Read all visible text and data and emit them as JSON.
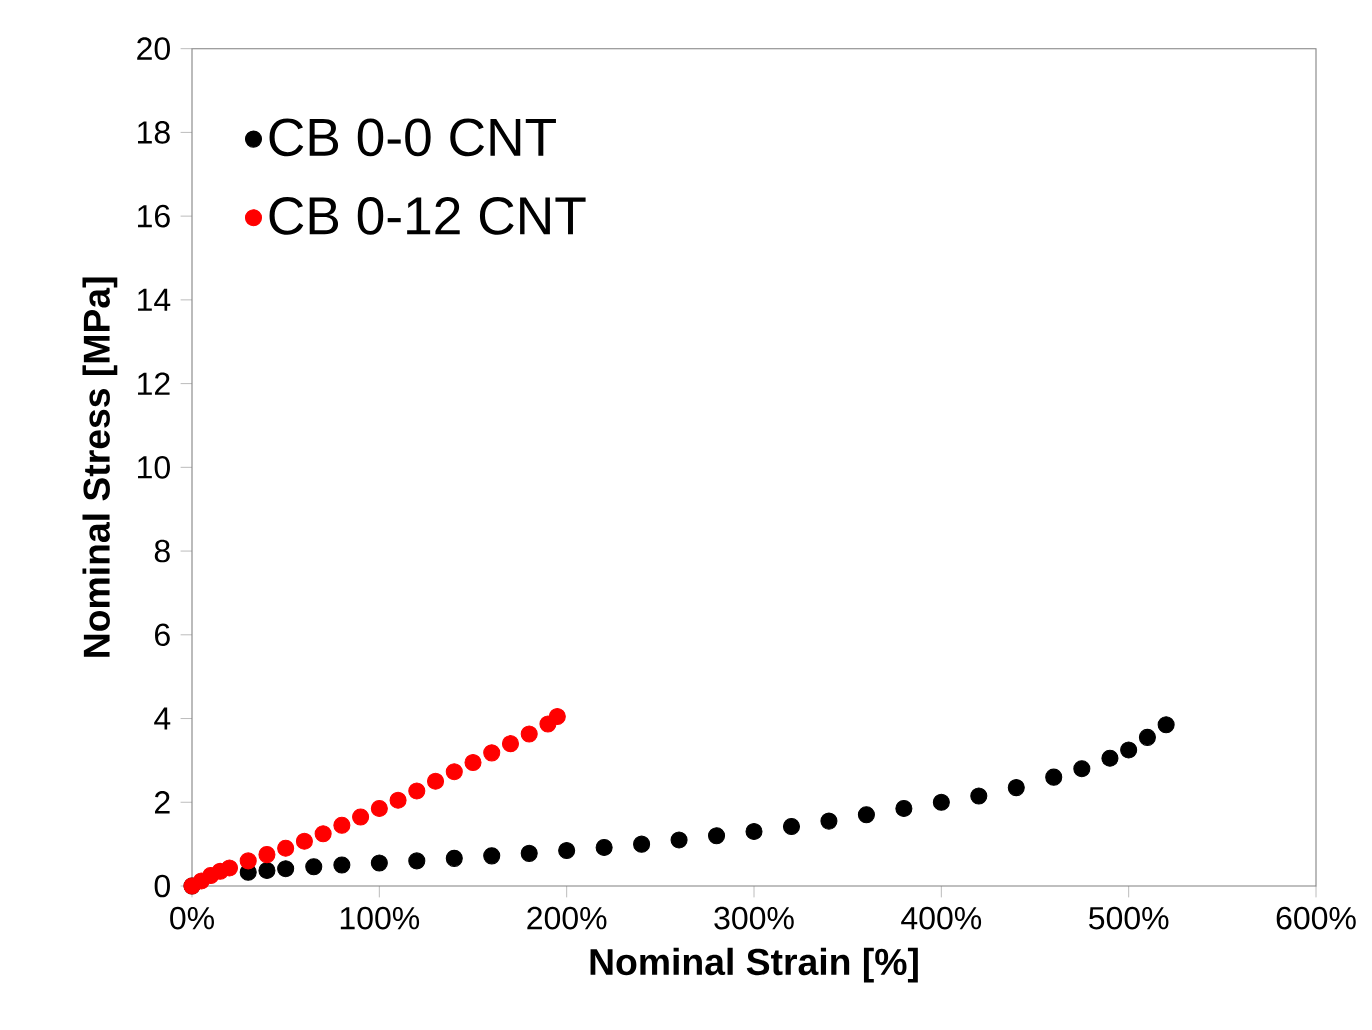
{
  "chart_data": {
    "type": "scatter",
    "xlabel": "Nominal Strain [%]",
    "ylabel": "Nominal Stress [MPa]",
    "xlim": [
      0,
      600
    ],
    "ylim": [
      0,
      20
    ],
    "xticks": [
      {
        "value": 0,
        "label": "0%"
      },
      {
        "value": 100,
        "label": "100%"
      },
      {
        "value": 200,
        "label": "200%"
      },
      {
        "value": 300,
        "label": "300%"
      },
      {
        "value": 400,
        "label": "400%"
      },
      {
        "value": 500,
        "label": "500%"
      },
      {
        "value": 600,
        "label": "600%"
      }
    ],
    "yticks": [
      0,
      2,
      4,
      6,
      8,
      10,
      12,
      14,
      16,
      18,
      20
    ],
    "marker": "circle",
    "legend": "top left",
    "grid": false,
    "series": [
      {
        "name": "CB 0-0 CNT",
        "color": "#000000",
        "x": [
          0,
          30,
          40,
          50,
          65,
          80,
          100,
          120,
          140,
          160,
          180,
          200,
          220,
          240,
          260,
          280,
          300,
          320,
          340,
          360,
          380,
          400,
          420,
          440,
          460,
          475,
          490,
          500,
          510,
          520
        ],
        "values": [
          0,
          0.33,
          0.37,
          0.41,
          0.46,
          0.5,
          0.55,
          0.6,
          0.66,
          0.72,
          0.78,
          0.85,
          0.92,
          1.0,
          1.1,
          1.2,
          1.3,
          1.42,
          1.55,
          1.7,
          1.85,
          2.0,
          2.15,
          2.35,
          2.6,
          2.8,
          3.05,
          3.25,
          3.55,
          3.85
        ]
      },
      {
        "name": "CB 0-12 CNT",
        "color": "#ff0000",
        "x": [
          0,
          5,
          10,
          15,
          20,
          30,
          40,
          50,
          60,
          70,
          80,
          90,
          100,
          110,
          120,
          130,
          140,
          150,
          160,
          170,
          180,
          190,
          195
        ],
        "values": [
          0,
          0.12,
          0.25,
          0.35,
          0.43,
          0.6,
          0.75,
          0.9,
          1.07,
          1.25,
          1.45,
          1.65,
          1.85,
          2.05,
          2.27,
          2.5,
          2.73,
          2.95,
          3.18,
          3.4,
          3.63,
          3.87,
          4.05
        ]
      }
    ]
  }
}
